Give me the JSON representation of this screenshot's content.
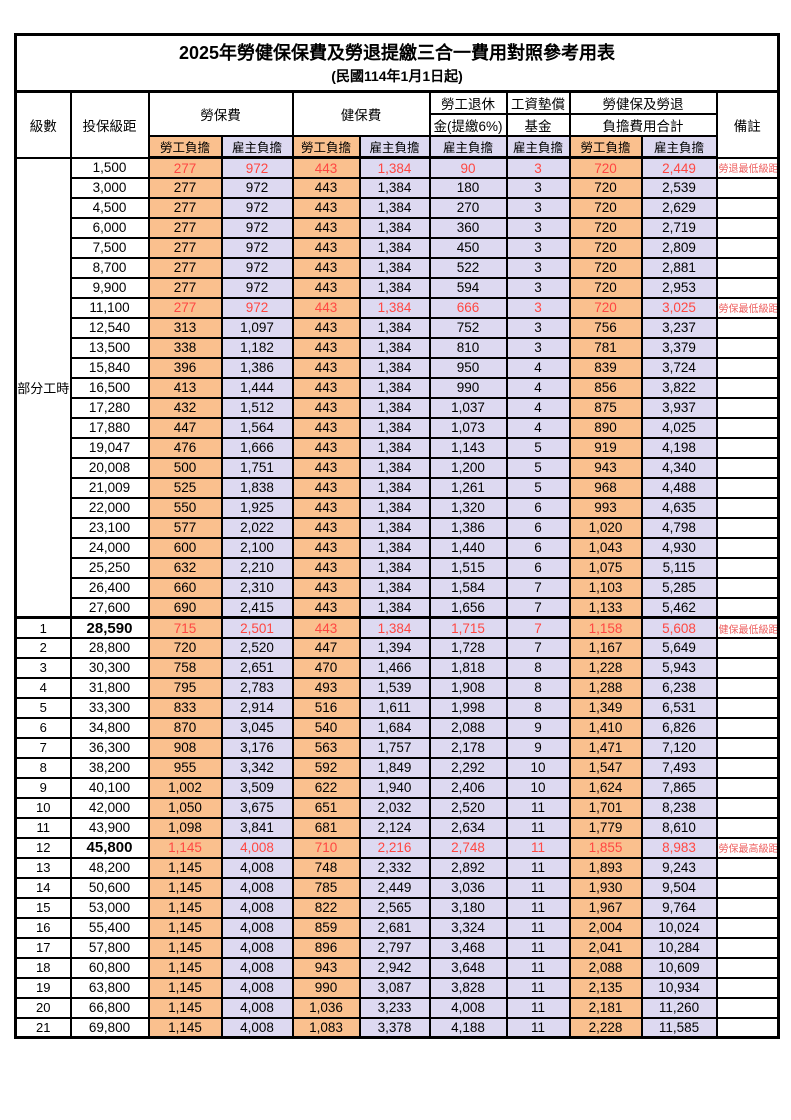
{
  "title": "2025年勞健保保費及勞退提繳三合一費用對照參考用表",
  "subtitle": "(民國114年1月1日起)",
  "headers": {
    "level": "級數",
    "bracket": "投保級距",
    "labor_insurance": "勞保費",
    "health_insurance": "健保費",
    "pension_line1": "勞工退休",
    "pension_line2": "金(提繳6%)",
    "wage_fund_line1": "工資墊償",
    "wage_fund_line2": "基金",
    "total_line1": "勞健保及勞退",
    "total_line2": "負擔費用合計",
    "remark": "備註",
    "employee": "勞工負擔",
    "employer": "雇主負擔"
  },
  "part_time": {
    "label": "部分工時",
    "rowspan": 23
  },
  "colors": {
    "employee_bg": "#FAC08E",
    "employer_bg": "#DDD9F1",
    "red_text": "#FF4742",
    "remark_red": "#EE5F5F",
    "border": "#000000"
  },
  "rows": [
    {
      "level": null,
      "bracket": "1,500",
      "values": [
        "277",
        "972",
        "443",
        "1,384",
        "90",
        "3",
        "720",
        "2,449"
      ],
      "remark": "勞退最低級距",
      "red": true,
      "bold": false,
      "section_start": false
    },
    {
      "level": null,
      "bracket": "3,000",
      "values": [
        "277",
        "972",
        "443",
        "1,384",
        "180",
        "3",
        "720",
        "2,539"
      ],
      "remark": "",
      "red": false,
      "bold": false,
      "section_start": false
    },
    {
      "level": null,
      "bracket": "4,500",
      "values": [
        "277",
        "972",
        "443",
        "1,384",
        "270",
        "3",
        "720",
        "2,629"
      ],
      "remark": "",
      "red": false,
      "bold": false,
      "section_start": false
    },
    {
      "level": null,
      "bracket": "6,000",
      "values": [
        "277",
        "972",
        "443",
        "1,384",
        "360",
        "3",
        "720",
        "2,719"
      ],
      "remark": "",
      "red": false,
      "bold": false,
      "section_start": false
    },
    {
      "level": null,
      "bracket": "7,500",
      "values": [
        "277",
        "972",
        "443",
        "1,384",
        "450",
        "3",
        "720",
        "2,809"
      ],
      "remark": "",
      "red": false,
      "bold": false,
      "section_start": false
    },
    {
      "level": null,
      "bracket": "8,700",
      "values": [
        "277",
        "972",
        "443",
        "1,384",
        "522",
        "3",
        "720",
        "2,881"
      ],
      "remark": "",
      "red": false,
      "bold": false,
      "section_start": false
    },
    {
      "level": null,
      "bracket": "9,900",
      "values": [
        "277",
        "972",
        "443",
        "1,384",
        "594",
        "3",
        "720",
        "2,953"
      ],
      "remark": "",
      "red": false,
      "bold": false,
      "section_start": false
    },
    {
      "level": null,
      "bracket": "11,100",
      "values": [
        "277",
        "972",
        "443",
        "1,384",
        "666",
        "3",
        "720",
        "3,025"
      ],
      "remark": "勞保最低級距",
      "red": true,
      "bold": false,
      "section_start": false
    },
    {
      "level": null,
      "bracket": "12,540",
      "values": [
        "313",
        "1,097",
        "443",
        "1,384",
        "752",
        "3",
        "756",
        "3,237"
      ],
      "remark": "",
      "red": false,
      "bold": false,
      "section_start": false
    },
    {
      "level": null,
      "bracket": "13,500",
      "values": [
        "338",
        "1,182",
        "443",
        "1,384",
        "810",
        "3",
        "781",
        "3,379"
      ],
      "remark": "",
      "red": false,
      "bold": false,
      "section_start": false
    },
    {
      "level": null,
      "bracket": "15,840",
      "values": [
        "396",
        "1,386",
        "443",
        "1,384",
        "950",
        "4",
        "839",
        "3,724"
      ],
      "remark": "",
      "red": false,
      "bold": false,
      "section_start": false
    },
    {
      "level": null,
      "bracket": "16,500",
      "values": [
        "413",
        "1,444",
        "443",
        "1,384",
        "990",
        "4",
        "856",
        "3,822"
      ],
      "remark": "",
      "red": false,
      "bold": false,
      "section_start": false
    },
    {
      "level": null,
      "bracket": "17,280",
      "values": [
        "432",
        "1,512",
        "443",
        "1,384",
        "1,037",
        "4",
        "875",
        "3,937"
      ],
      "remark": "",
      "red": false,
      "bold": false,
      "section_start": false
    },
    {
      "level": null,
      "bracket": "17,880",
      "values": [
        "447",
        "1,564",
        "443",
        "1,384",
        "1,073",
        "4",
        "890",
        "4,025"
      ],
      "remark": "",
      "red": false,
      "bold": false,
      "section_start": false
    },
    {
      "level": null,
      "bracket": "19,047",
      "values": [
        "476",
        "1,666",
        "443",
        "1,384",
        "1,143",
        "5",
        "919",
        "4,198"
      ],
      "remark": "",
      "red": false,
      "bold": false,
      "section_start": false
    },
    {
      "level": null,
      "bracket": "20,008",
      "values": [
        "500",
        "1,751",
        "443",
        "1,384",
        "1,200",
        "5",
        "943",
        "4,340"
      ],
      "remark": "",
      "red": false,
      "bold": false,
      "section_start": false
    },
    {
      "level": null,
      "bracket": "21,009",
      "values": [
        "525",
        "1,838",
        "443",
        "1,384",
        "1,261",
        "5",
        "968",
        "4,488"
      ],
      "remark": "",
      "red": false,
      "bold": false,
      "section_start": false
    },
    {
      "level": null,
      "bracket": "22,000",
      "values": [
        "550",
        "1,925",
        "443",
        "1,384",
        "1,320",
        "6",
        "993",
        "4,635"
      ],
      "remark": "",
      "red": false,
      "bold": false,
      "section_start": false
    },
    {
      "level": null,
      "bracket": "23,100",
      "values": [
        "577",
        "2,022",
        "443",
        "1,384",
        "1,386",
        "6",
        "1,020",
        "4,798"
      ],
      "remark": "",
      "red": false,
      "bold": false,
      "section_start": false
    },
    {
      "level": null,
      "bracket": "24,000",
      "values": [
        "600",
        "2,100",
        "443",
        "1,384",
        "1,440",
        "6",
        "1,043",
        "4,930"
      ],
      "remark": "",
      "red": false,
      "bold": false,
      "section_start": false
    },
    {
      "level": null,
      "bracket": "25,250",
      "values": [
        "632",
        "2,210",
        "443",
        "1,384",
        "1,515",
        "6",
        "1,075",
        "5,115"
      ],
      "remark": "",
      "red": false,
      "bold": false,
      "section_start": false
    },
    {
      "level": null,
      "bracket": "26,400",
      "values": [
        "660",
        "2,310",
        "443",
        "1,384",
        "1,584",
        "7",
        "1,103",
        "5,285"
      ],
      "remark": "",
      "red": false,
      "bold": false,
      "section_start": false
    },
    {
      "level": null,
      "bracket": "27,600",
      "values": [
        "690",
        "2,415",
        "443",
        "1,384",
        "1,656",
        "7",
        "1,133",
        "5,462"
      ],
      "remark": "",
      "red": false,
      "bold": false,
      "section_start": false
    },
    {
      "level": "1",
      "bracket": "28,590",
      "values": [
        "715",
        "2,501",
        "443",
        "1,384",
        "1,715",
        "7",
        "1,158",
        "5,608"
      ],
      "remark": "健保最低級距",
      "red": true,
      "bold": true,
      "section_start": true
    },
    {
      "level": "2",
      "bracket": "28,800",
      "values": [
        "720",
        "2,520",
        "447",
        "1,394",
        "1,728",
        "7",
        "1,167",
        "5,649"
      ],
      "remark": "",
      "red": false,
      "bold": false,
      "section_start": false
    },
    {
      "level": "3",
      "bracket": "30,300",
      "values": [
        "758",
        "2,651",
        "470",
        "1,466",
        "1,818",
        "8",
        "1,228",
        "5,943"
      ],
      "remark": "",
      "red": false,
      "bold": false,
      "section_start": false
    },
    {
      "level": "4",
      "bracket": "31,800",
      "values": [
        "795",
        "2,783",
        "493",
        "1,539",
        "1,908",
        "8",
        "1,288",
        "6,238"
      ],
      "remark": "",
      "red": false,
      "bold": false,
      "section_start": false
    },
    {
      "level": "5",
      "bracket": "33,300",
      "values": [
        "833",
        "2,914",
        "516",
        "1,611",
        "1,998",
        "8",
        "1,349",
        "6,531"
      ],
      "remark": "",
      "red": false,
      "bold": false,
      "section_start": false
    },
    {
      "level": "6",
      "bracket": "34,800",
      "values": [
        "870",
        "3,045",
        "540",
        "1,684",
        "2,088",
        "9",
        "1,410",
        "6,826"
      ],
      "remark": "",
      "red": false,
      "bold": false,
      "section_start": false
    },
    {
      "level": "7",
      "bracket": "36,300",
      "values": [
        "908",
        "3,176",
        "563",
        "1,757",
        "2,178",
        "9",
        "1,471",
        "7,120"
      ],
      "remark": "",
      "red": false,
      "bold": false,
      "section_start": false
    },
    {
      "level": "8",
      "bracket": "38,200",
      "values": [
        "955",
        "3,342",
        "592",
        "1,849",
        "2,292",
        "10",
        "1,547",
        "7,493"
      ],
      "remark": "",
      "red": false,
      "bold": false,
      "section_start": false
    },
    {
      "level": "9",
      "bracket": "40,100",
      "values": [
        "1,002",
        "3,509",
        "622",
        "1,940",
        "2,406",
        "10",
        "1,624",
        "7,865"
      ],
      "remark": "",
      "red": false,
      "bold": false,
      "section_start": false
    },
    {
      "level": "10",
      "bracket": "42,000",
      "values": [
        "1,050",
        "3,675",
        "651",
        "2,032",
        "2,520",
        "11",
        "1,701",
        "8,238"
      ],
      "remark": "",
      "red": false,
      "bold": false,
      "section_start": false
    },
    {
      "level": "11",
      "bracket": "43,900",
      "values": [
        "1,098",
        "3,841",
        "681",
        "2,124",
        "2,634",
        "11",
        "1,779",
        "8,610"
      ],
      "remark": "",
      "red": false,
      "bold": false,
      "section_start": false
    },
    {
      "level": "12",
      "bracket": "45,800",
      "values": [
        "1,145",
        "4,008",
        "710",
        "2,216",
        "2,748",
        "11",
        "1,855",
        "8,983"
      ],
      "remark": "勞保最高級距",
      "red": true,
      "bold": true,
      "section_start": false
    },
    {
      "level": "13",
      "bracket": "48,200",
      "values": [
        "1,145",
        "4,008",
        "748",
        "2,332",
        "2,892",
        "11",
        "1,893",
        "9,243"
      ],
      "remark": "",
      "red": false,
      "bold": false,
      "section_start": false
    },
    {
      "level": "14",
      "bracket": "50,600",
      "values": [
        "1,145",
        "4,008",
        "785",
        "2,449",
        "3,036",
        "11",
        "1,930",
        "9,504"
      ],
      "remark": "",
      "red": false,
      "bold": false,
      "section_start": false
    },
    {
      "level": "15",
      "bracket": "53,000",
      "values": [
        "1,145",
        "4,008",
        "822",
        "2,565",
        "3,180",
        "11",
        "1,967",
        "9,764"
      ],
      "remark": "",
      "red": false,
      "bold": false,
      "section_start": false
    },
    {
      "level": "16",
      "bracket": "55,400",
      "values": [
        "1,145",
        "4,008",
        "859",
        "2,681",
        "3,324",
        "11",
        "2,004",
        "10,024"
      ],
      "remark": "",
      "red": false,
      "bold": false,
      "section_start": false
    },
    {
      "level": "17",
      "bracket": "57,800",
      "values": [
        "1,145",
        "4,008",
        "896",
        "2,797",
        "3,468",
        "11",
        "2,041",
        "10,284"
      ],
      "remark": "",
      "red": false,
      "bold": false,
      "section_start": false
    },
    {
      "level": "18",
      "bracket": "60,800",
      "values": [
        "1,145",
        "4,008",
        "943",
        "2,942",
        "3,648",
        "11",
        "2,088",
        "10,609"
      ],
      "remark": "",
      "red": false,
      "bold": false,
      "section_start": false
    },
    {
      "level": "19",
      "bracket": "63,800",
      "values": [
        "1,145",
        "4,008",
        "990",
        "3,087",
        "3,828",
        "11",
        "2,135",
        "10,934"
      ],
      "remark": "",
      "red": false,
      "bold": false,
      "section_start": false
    },
    {
      "level": "20",
      "bracket": "66,800",
      "values": [
        "1,145",
        "4,008",
        "1,036",
        "3,233",
        "4,008",
        "11",
        "2,181",
        "11,260"
      ],
      "remark": "",
      "red": false,
      "bold": false,
      "section_start": false
    },
    {
      "level": "21",
      "bracket": "69,800",
      "values": [
        "1,145",
        "4,008",
        "1,083",
        "3,378",
        "4,188",
        "11",
        "2,228",
        "11,585"
      ],
      "remark": "",
      "red": false,
      "bold": false,
      "section_start": false
    }
  ]
}
